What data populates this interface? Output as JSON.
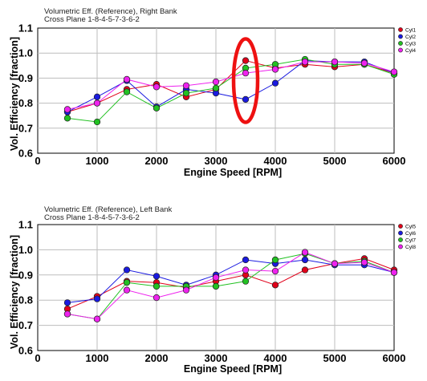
{
  "chart_data": [
    {
      "type": "line",
      "title": "Volumetric Eff. (Reference), Right Bank",
      "subtitle": "Cross Plane 1-8-4-5-7-3-6-2",
      "xlabel": "Engine Speed [RPM]",
      "ylabel": "Vol. Efficiency [fraction]",
      "xlim": [
        0,
        6000
      ],
      "ylim": [
        0.6,
        1.1
      ],
      "xticks": [
        "0",
        "1000",
        "2000",
        "3000",
        "4000",
        "5000",
        "6000"
      ],
      "yticks": [
        "0.6",
        "0.7",
        "0.8",
        "0.9",
        "1.0",
        "1.1"
      ],
      "grid": true,
      "legend_position": "top-right",
      "x": [
        500,
        1000,
        1500,
        2000,
        2500,
        3000,
        3500,
        4000,
        4500,
        5000,
        5500,
        6000
      ],
      "series": [
        {
          "name": "Cyl1",
          "color": "#e0001a",
          "values": [
            0.765,
            0.8,
            0.855,
            0.875,
            0.825,
            0.855,
            0.97,
            0.94,
            0.955,
            0.945,
            0.955,
            0.92
          ]
        },
        {
          "name": "Cyl2",
          "color": "#1a1ae0",
          "values": [
            0.765,
            0.825,
            0.89,
            0.785,
            0.855,
            0.84,
            0.815,
            0.88,
            0.97,
            0.965,
            0.965,
            0.92
          ]
        },
        {
          "name": "Cyl3",
          "color": "#22c122",
          "values": [
            0.74,
            0.725,
            0.845,
            0.78,
            0.84,
            0.86,
            0.94,
            0.955,
            0.975,
            0.955,
            0.955,
            0.915
          ]
        },
        {
          "name": "Cyl4",
          "color": "#ee22ee",
          "values": [
            0.775,
            0.8,
            0.895,
            0.865,
            0.87,
            0.885,
            0.92,
            0.935,
            0.965,
            0.965,
            0.96,
            0.925
          ]
        }
      ],
      "annotation": "red ellipse highlighting 3500 RPM"
    },
    {
      "type": "line",
      "title": "Volumetric Eff. (Reference), Left Bank",
      "subtitle": "Cross Plane 1-8-4-5-7-3-6-2",
      "xlabel": "Engine Speed [RPM]",
      "ylabel": "Vol. Efficiency [fraction]",
      "xlim": [
        0,
        6000
      ],
      "ylim": [
        0.6,
        1.1
      ],
      "xticks": [
        "0",
        "1000",
        "2000",
        "3000",
        "4000",
        "5000",
        "6000"
      ],
      "yticks": [
        "0.6",
        "0.7",
        "0.8",
        "0.9",
        "1.0",
        "1.1"
      ],
      "grid": true,
      "legend_position": "top-right",
      "x": [
        500,
        1000,
        1500,
        2000,
        2500,
        3000,
        3500,
        4000,
        4500,
        5000,
        5500,
        6000
      ],
      "series": [
        {
          "name": "Cyl5",
          "color": "#e0001a",
          "values": [
            0.765,
            0.815,
            0.875,
            0.87,
            0.85,
            0.875,
            0.9,
            0.86,
            0.92,
            0.945,
            0.965,
            0.92
          ]
        },
        {
          "name": "Cyl6",
          "color": "#1a1ae0",
          "values": [
            0.79,
            0.805,
            0.92,
            0.895,
            0.86,
            0.9,
            0.96,
            0.945,
            0.96,
            0.94,
            0.94,
            0.91
          ]
        },
        {
          "name": "Cyl7",
          "color": "#22c122",
          "values": [
            0.745,
            0.725,
            0.87,
            0.855,
            0.855,
            0.855,
            0.875,
            0.96,
            0.985,
            0.945,
            0.955,
            0.91
          ]
        },
        {
          "name": "Cyl8",
          "color": "#ee22ee",
          "values": [
            0.745,
            0.725,
            0.84,
            0.81,
            0.84,
            0.89,
            0.92,
            0.915,
            0.99,
            0.945,
            0.95,
            0.91
          ]
        }
      ]
    }
  ]
}
